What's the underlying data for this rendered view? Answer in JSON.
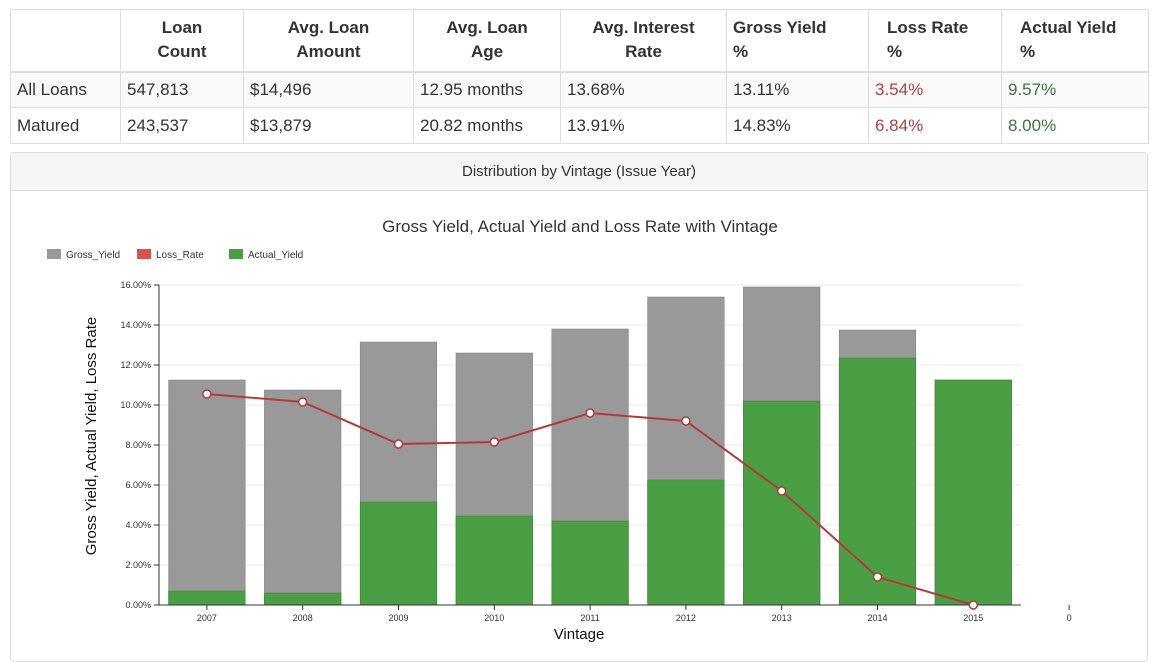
{
  "summary_table": {
    "headers": [
      "",
      "Loan\nCount",
      "Avg. Loan\nAmount",
      "Avg. Loan\nAge",
      "Avg. Interest\nRate",
      "Gross Yield\n%",
      "Loss Rate\n%",
      "Actual Yield\n%"
    ],
    "header_lines": [
      [
        "",
        ""
      ],
      [
        "Loan",
        "Count"
      ],
      [
        "Avg. Loan",
        "Amount"
      ],
      [
        "Avg. Loan",
        "Age"
      ],
      [
        "Avg. Interest",
        "Rate"
      ],
      [
        "Gross Yield",
        "%"
      ],
      [
        "Loss Rate",
        "%"
      ],
      [
        "Actual Yield",
        "%"
      ]
    ],
    "rows": [
      [
        "All Loans",
        "547,813",
        "$14,496",
        "12.95 months",
        "13.68%",
        "13.11%",
        "3.54%",
        "9.57%"
      ],
      [
        "Matured",
        "243,537",
        "$13,879",
        "20.82 months",
        "13.91%",
        "14.83%",
        "6.84%",
        "8.00%"
      ]
    ]
  },
  "panel": {
    "heading": "Distribution by Vintage (Issue Year)"
  },
  "colors": {
    "gross_yield": "#999999",
    "loss_rate": "#d9534f",
    "loss_line": "#b33a3a",
    "actual_yield": "#4a9e44",
    "loss_text": "#a94442",
    "gain_text": "#3c763d"
  },
  "chart_data": {
    "type": "bar",
    "title": "Gross Yield, Actual Yield and Loss Rate with Vintage",
    "xlabel": "Vintage",
    "ylabel": "Gross Yield, Actual Yield, Loss Rate",
    "categories": [
      "2007",
      "2008",
      "2009",
      "2010",
      "2011",
      "2012",
      "2013",
      "2014",
      "2015",
      "0"
    ],
    "ylim": [
      0,
      16
    ],
    "yticks": [
      "0.00%",
      "2.00%",
      "4.00%",
      "6.00%",
      "8.00%",
      "10.00%",
      "12.00%",
      "14.00%",
      "16.00%"
    ],
    "legend": [
      "Gross_Yield",
      "Loss_Rate",
      "Actual_Yield"
    ],
    "legend_position": "top-left",
    "grid": true,
    "series": [
      {
        "name": "Gross_Yield",
        "kind": "bar",
        "values": [
          11.25,
          10.75,
          13.15,
          12.6,
          13.8,
          15.4,
          15.9,
          13.75,
          11.25,
          null
        ]
      },
      {
        "name": "Actual_Yield",
        "kind": "bar",
        "values": [
          0.7,
          0.6,
          5.15,
          4.45,
          4.2,
          6.25,
          10.2,
          12.35,
          11.25,
          null
        ]
      },
      {
        "name": "Loss_Rate",
        "kind": "line",
        "values": [
          10.55,
          10.15,
          8.05,
          8.15,
          9.6,
          9.2,
          5.7,
          1.4,
          0.0,
          null
        ]
      }
    ]
  }
}
